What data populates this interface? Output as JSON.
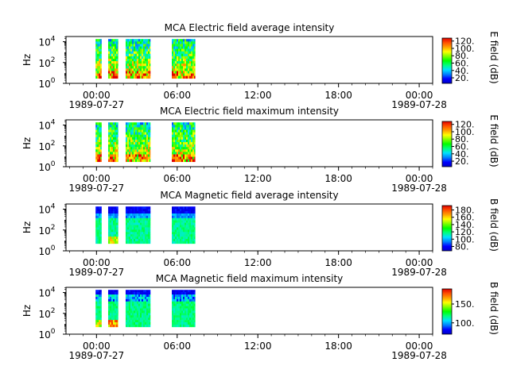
{
  "colorbar_gradient": [
    "#0000c8",
    "#0000ff",
    "#0080ff",
    "#00e0ff",
    "#00ff80",
    "#00ff00",
    "#80ff00",
    "#ffff00",
    "#ffa000",
    "#ff5000",
    "#e00000"
  ],
  "chart_data": [
    {
      "type": "heatmap",
      "title": "MCA  Electric field average intensity",
      "ylabel": "Hz",
      "yscale": "log",
      "ylim": [
        1,
        31623
      ],
      "yticks": [
        "10^0",
        "10^2",
        "10^4"
      ],
      "xlim": [
        "1989-07-26T21:44",
        "1989-07-28T01:00"
      ],
      "xticks": [
        "00:00",
        "06:00",
        "12:00",
        "18:00",
        "00:00"
      ],
      "xdates": {
        "00:00 (first)": "1989-07-27",
        "00:00 (last)": "1989-07-28"
      },
      "colorbar_label": "E field (dB)",
      "colorbar_ticks": [
        "20.",
        "40.",
        "60.",
        "80.",
        "100.",
        "120."
      ],
      "colorbar_range": [
        5,
        128
      ],
      "data_blocks": [
        {
          "start": "1989-07-26T23:56",
          "end": "1989-07-27T00:22"
        },
        {
          "start": "1989-07-27T00:52",
          "end": "1989-07-27T01:36"
        },
        {
          "start": "1989-07-27T02:10",
          "end": "1989-07-27T04:00"
        },
        {
          "start": "1989-07-27T05:36",
          "end": "1989-07-27T07:20"
        }
      ],
      "freq_range": [
        3,
        18000
      ],
      "palette": "spectral-hot"
    },
    {
      "type": "heatmap",
      "title": "MCA  Electric field maximum intensity",
      "ylabel": "Hz",
      "yscale": "log",
      "ylim": [
        1,
        31623
      ],
      "yticks": [
        "10^0",
        "10^2",
        "10^4"
      ],
      "xlim": [
        "1989-07-26T21:44",
        "1989-07-28T01:00"
      ],
      "xticks": [
        "00:00",
        "06:00",
        "12:00",
        "18:00",
        "00:00"
      ],
      "xdates": {
        "00:00 (first)": "1989-07-27",
        "00:00 (last)": "1989-07-28"
      },
      "colorbar_label": "E field (dB)",
      "colorbar_ticks": [
        "20.",
        "40.",
        "60.",
        "80.",
        "100.",
        "120."
      ],
      "colorbar_range": [
        5,
        128
      ],
      "data_blocks": [
        {
          "start": "1989-07-26T23:56",
          "end": "1989-07-27T00:22"
        },
        {
          "start": "1989-07-27T00:52",
          "end": "1989-07-27T01:36"
        },
        {
          "start": "1989-07-27T02:10",
          "end": "1989-07-27T04:00"
        },
        {
          "start": "1989-07-27T05:36",
          "end": "1989-07-27T07:20"
        }
      ],
      "freq_range": [
        3,
        18000
      ],
      "palette": "spectral-hot"
    },
    {
      "type": "heatmap",
      "title": "MCA  Magnetic field average intensity",
      "ylabel": "Hz",
      "yscale": "log",
      "ylim": [
        1,
        31623
      ],
      "yticks": [
        "10^0",
        "10^2",
        "10^4"
      ],
      "xlim": [
        "1989-07-26T21:44",
        "1989-07-28T01:00"
      ],
      "xticks": [
        "00:00",
        "06:00",
        "12:00",
        "18:00",
        "00:00"
      ],
      "xdates": {
        "00:00 (first)": "1989-07-27",
        "00:00 (last)": "1989-07-28"
      },
      "colorbar_label": "B field (dB)",
      "colorbar_ticks": [
        "80.",
        "100.",
        "120.",
        "140.",
        "160.",
        "180."
      ],
      "colorbar_range": [
        68,
        192
      ],
      "data_blocks": [
        {
          "start": "1989-07-26T23:56",
          "end": "1989-07-27T00:22"
        },
        {
          "start": "1989-07-27T00:52",
          "end": "1989-07-27T01:36"
        },
        {
          "start": "1989-07-27T02:10",
          "end": "1989-07-27T04:00"
        },
        {
          "start": "1989-07-27T05:36",
          "end": "1989-07-27T07:20"
        }
      ],
      "freq_range": [
        5,
        18000
      ],
      "palette": "magnetic-avg"
    },
    {
      "type": "heatmap",
      "title": "MCA  Magnetic field maximum intensity",
      "ylabel": "Hz",
      "yscale": "log",
      "ylim": [
        1,
        31623
      ],
      "yticks": [
        "10^0",
        "10^2",
        "10^4"
      ],
      "xlim": [
        "1989-07-26T21:44",
        "1989-07-28T01:00"
      ],
      "xticks": [
        "00:00",
        "06:00",
        "12:00",
        "18:00",
        "00:00"
      ],
      "xdates": {
        "00:00 (first)": "1989-07-27",
        "00:00 (last)": "1989-07-28"
      },
      "colorbar_label": "B field (dB)",
      "colorbar_ticks": [
        "100.",
        "150."
      ],
      "colorbar_range": [
        70,
        190
      ],
      "data_blocks": [
        {
          "start": "1989-07-26T23:56",
          "end": "1989-07-27T00:22"
        },
        {
          "start": "1989-07-27T00:52",
          "end": "1989-07-27T01:36"
        },
        {
          "start": "1989-07-27T02:10",
          "end": "1989-07-27T04:00"
        },
        {
          "start": "1989-07-27T05:36",
          "end": "1989-07-27T07:20"
        }
      ],
      "freq_range": [
        5,
        18000
      ],
      "palette": "magnetic-max"
    }
  ]
}
